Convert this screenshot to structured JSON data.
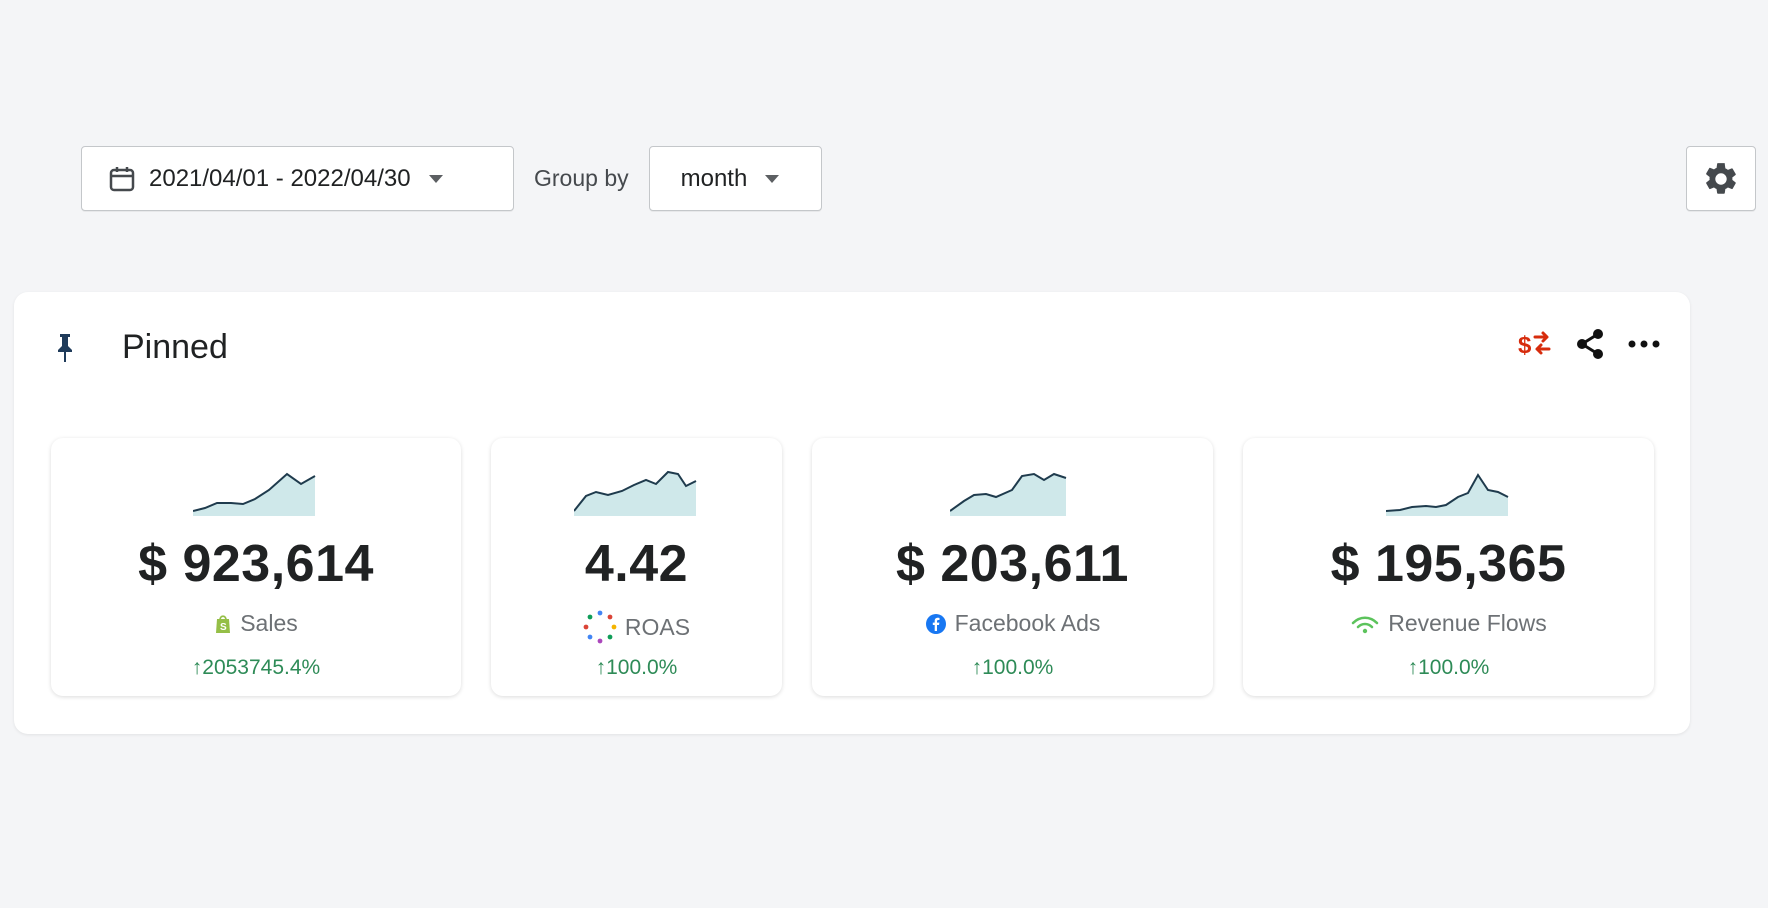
{
  "toolbar": {
    "date_range": "2021/04/01 - 2022/04/30",
    "group_by_label": "Group by",
    "group_by_value": "month"
  },
  "panel": {
    "title": "Pinned"
  },
  "cards": [
    {
      "value": "$ 923,614",
      "label": "Sales",
      "change": "↑2053745.4%",
      "source_icon": "shopify-icon"
    },
    {
      "value": "4.42",
      "label": "ROAS",
      "change": "↑100.0%",
      "source_icon": "roas-dots-icon"
    },
    {
      "value": "$ 203,611",
      "label": "Facebook Ads",
      "change": "↑100.0%",
      "source_icon": "facebook-icon"
    },
    {
      "value": "$ 195,365",
      "label": "Revenue Flows",
      "change": "↑100.0%",
      "source_icon": "revenue-flows-icon"
    }
  ],
  "colors": {
    "accent_green": "#2e8b57",
    "sparkline_line": "#1f3b4d",
    "sparkline_fill": "#cfe8ea",
    "currency_swap_red": "#d72c0d"
  }
}
